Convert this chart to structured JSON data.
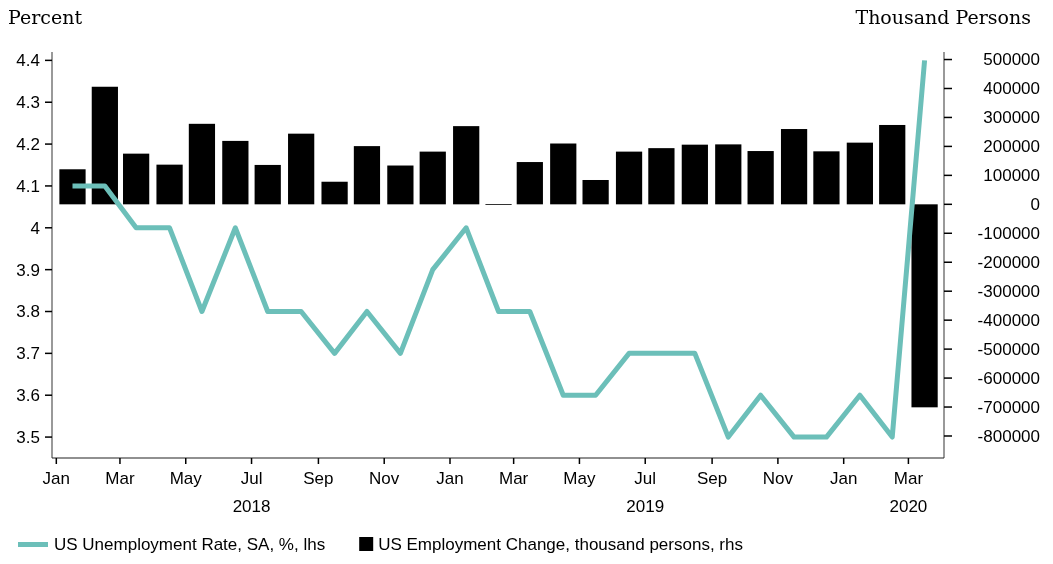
{
  "chart_data": {
    "type": "line",
    "x": [
      "2018-01-16",
      "2018-02-15",
      "2018-03-16",
      "2018-04-16",
      "2018-05-16",
      "2018-06-16",
      "2018-07-16",
      "2018-08-16",
      "2018-09-16",
      "2018-10-16",
      "2018-11-16",
      "2018-12-16",
      "2019-01-16",
      "2019-02-15",
      "2019-03-16",
      "2019-04-16",
      "2019-05-16",
      "2019-06-16",
      "2019-07-16",
      "2019-08-16",
      "2019-09-16",
      "2019-10-16",
      "2019-11-16",
      "2019-12-16",
      "2020-01-16",
      "2020-02-15",
      "2020-03-16"
    ],
    "series": [
      {
        "name": "US Unemployment Rate, SA, %, lhs",
        "color": "#6cbfb9",
        "values": [
          4.1,
          4.1,
          4.0,
          4.0,
          3.8,
          4.0,
          3.8,
          3.8,
          3.7,
          3.8,
          3.7,
          3.9,
          4.0,
          3.8,
          3.8,
          3.6,
          3.6,
          3.7,
          3.7,
          3.7,
          3.5,
          3.6,
          3.5,
          3.5,
          3.6,
          3.5,
          4.4
        ]
      },
      {
        "name": "US Employment Change, thousand persons, rhs",
        "color": "#000000",
        "type": "bar",
        "axis": "y2",
        "values": [
          121000,
          406000,
          175000,
          137000,
          278000,
          219000,
          136000,
          244000,
          78000,
          201000,
          134000,
          182000,
          270000,
          1000,
          146000,
          210000,
          84000,
          182000,
          194000,
          206000,
          207000,
          184000,
          260000,
          183000,
          213000,
          274000,
          -701000
        ]
      }
    ],
    "ylabel": "Percent",
    "y2label": "Thousand Persons",
    "xlim": [
      "2017-12-28",
      "2020-04-03"
    ],
    "xticks": [
      {
        "value": "2018-01-01",
        "label": "Jan"
      },
      {
        "value": "2018-03-01",
        "label": "Mar"
      },
      {
        "value": "2018-05-01",
        "label": "May"
      },
      {
        "value": "2018-07-01",
        "label": "Jul\n2018"
      },
      {
        "value": "2018-09-01",
        "label": "Sep"
      },
      {
        "value": "2018-11-01",
        "label": "Nov"
      },
      {
        "value": "2019-01-01",
        "label": "Jan"
      },
      {
        "value": "2019-03-01",
        "label": "Mar"
      },
      {
        "value": "2019-05-01",
        "label": "May"
      },
      {
        "value": "2019-07-01",
        "label": "Jul\n2019"
      },
      {
        "value": "2019-09-01",
        "label": "Sep"
      },
      {
        "value": "2019-11-01",
        "label": "Nov"
      },
      {
        "value": "2020-01-01",
        "label": "Jan"
      },
      {
        "value": "2020-03-01",
        "label": "Mar\n2020"
      }
    ],
    "ylim": [
      3.45,
      4.42
    ],
    "yticks": [
      3.5,
      3.6,
      3.7,
      3.8,
      3.9,
      4.0,
      4.1,
      4.2,
      4.3,
      4.4
    ],
    "y2lim": [
      -876000,
      526000
    ],
    "y2ticks": [
      -800000,
      -700000,
      -600000,
      -500000,
      -400000,
      -300000,
      -200000,
      -100000,
      0,
      100000,
      200000,
      300000,
      400000,
      500000
    ],
    "grid": false,
    "legend": "bottom"
  }
}
